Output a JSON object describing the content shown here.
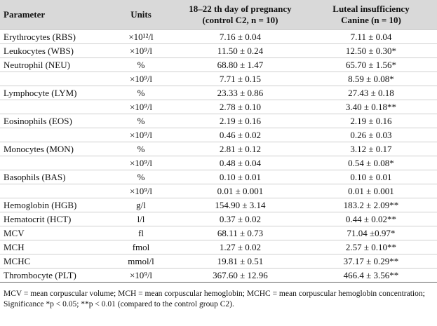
{
  "table": {
    "header": [
      "Parameter",
      "Units",
      [
        "18–22 th day of pregnancy",
        "(control C2, n = 10)"
      ],
      [
        "Luteal insufficiency",
        "Canine (n = 10)"
      ]
    ],
    "rows": [
      [
        "Erythrocytes (RBS)",
        "×10¹²/l",
        "7.16 ± 0.04",
        "7.11 ± 0.04"
      ],
      [
        "Leukocytes (WBS)",
        "×10⁹/l",
        "11.50 ± 0.24",
        "12.50 ± 0.30*"
      ],
      [
        "Neutrophil  (NEU)",
        "%",
        "68.80 ± 1.47",
        "65.70 ± 1.56*"
      ],
      [
        "",
        "×10⁹/l",
        "7.71 ± 0.15",
        "8.59 ± 0.08*"
      ],
      [
        "Lymphocyte (LYM)",
        "%",
        "23.33 ± 0.86",
        "27.43 ± 0.18"
      ],
      [
        "",
        "×10⁹/l",
        "2.78 ± 0.10",
        "3.40 ± 0.18**"
      ],
      [
        "Eosinophils (EOS)",
        "%",
        "2.19 ± 0.16",
        "2.19 ± 0.16"
      ],
      [
        "",
        "×10⁹/l",
        "0.46 ± 0.02",
        "0.26 ± 0.03"
      ],
      [
        "Monocytes (MON)",
        "%",
        "2.81 ± 0.12",
        "3.12 ± 0.17"
      ],
      [
        "",
        "×10⁹/l",
        "0.48 ± 0.04",
        "0.54 ± 0.08*"
      ],
      [
        "Basophils (BAS)",
        "%",
        "0.10 ± 0.01",
        "0.10 ± 0.01"
      ],
      [
        "",
        "×10⁹/l",
        "0.01 ± 0.001",
        "0.01 ± 0.001"
      ],
      [
        "Hemoglobin (HGB)",
        "g/l",
        "154.90 ± 3.14",
        "183.2 ± 2.09**"
      ],
      [
        "Hematocrit (HCT)",
        "l/l",
        "0.37 ± 0.02",
        "0.44 ± 0.02**"
      ],
      [
        "MCV",
        "fl",
        "68.11 ± 0.73",
        "71.04 ±0.97*"
      ],
      [
        "MCH",
        "fmol",
        "1.27 ± 0.02",
        "2.57 ± 0.10**"
      ],
      [
        "MCHC",
        "mmol/l",
        "19.81 ± 0.51",
        "37.17 ± 0.29**"
      ],
      [
        "Thrombocyte (PLT)",
        "×10⁹/l",
        "367.60 ± 12.96",
        "466.4 ± 3.56**"
      ]
    ],
    "footnote": "MCV = mean corpuscular volume; MCH = mean corpuscular hemoglobin; MCHC = mean corpuscular hemoglobin concentration; Significance *p < 0.05; **p < 0.01 (compared to the control group C2)."
  }
}
